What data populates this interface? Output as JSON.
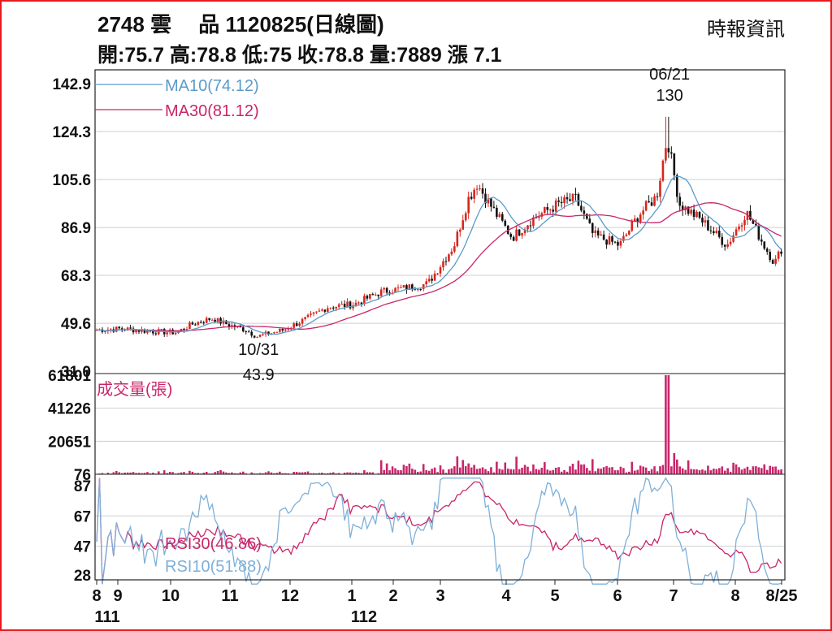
{
  "header": {
    "title": "2748 雲　 品 1120825(日線圖)",
    "ohlc": "開:75.7 高:78.8 低:75 收:78.8 量:7889 漲 7.1",
    "source": "時報資訊"
  },
  "chart_data": [
    {
      "type": "candlestick",
      "title": "2748 雲 品 1120825(日線圖)",
      "y_ticks": [
        "142.9",
        "124.3",
        "105.6",
        "86.9",
        "68.3",
        "49.6",
        "31.0"
      ],
      "ylim": [
        31.0,
        142.9
      ],
      "x_ticks": [
        "8",
        "9",
        "10",
        "11",
        "12",
        "1",
        "2",
        "3",
        "4",
        "5",
        "6",
        "7",
        "8",
        "8/25"
      ],
      "x_year_labels": [
        "111",
        "112"
      ],
      "legend": [
        {
          "name": "MA10(74.12)",
          "color": "#5b9bc8"
        },
        {
          "name": "MA30(81.12)",
          "color": "#c8266a"
        }
      ],
      "annotations": [
        {
          "text": "06/21",
          "value_text": "130",
          "date": "06/21",
          "value": 130
        },
        {
          "text": "10/31",
          "value_text": "43.9",
          "date": "10/31",
          "value": 43.9
        }
      ],
      "close_path": [
        [
          "8/1",
          47.0
        ],
        [
          "8/15",
          47.5
        ],
        [
          "9/1",
          46.5
        ],
        [
          "9/15",
          46.0
        ],
        [
          "9/25",
          49.5
        ],
        [
          "10/5",
          51.5
        ],
        [
          "10/15",
          49.0
        ],
        [
          "10/25",
          47.0
        ],
        [
          "10/31",
          44.5
        ],
        [
          "11/15",
          47.0
        ],
        [
          "11/30",
          52.0
        ],
        [
          "12/10",
          56.0
        ],
        [
          "12/25",
          57.0
        ],
        [
          "1/10",
          62.0
        ],
        [
          "1/20",
          63.0
        ],
        [
          "2/5",
          65.0
        ],
        [
          "2/20",
          80.0
        ],
        [
          "2/28",
          98.0
        ],
        [
          "3/5",
          104.0
        ],
        [
          "3/15",
          93.0
        ],
        [
          "3/25",
          83.0
        ],
        [
          "4/5",
          90.0
        ],
        [
          "4/20",
          96.0
        ],
        [
          "4/30",
          98.0
        ],
        [
          "5/10",
          84.0
        ],
        [
          "5/25",
          80.0
        ],
        [
          "6/5",
          92.0
        ],
        [
          "6/15",
          99.0
        ],
        [
          "6/21",
          122.0
        ],
        [
          "6/28",
          96.0
        ],
        [
          "7/10",
          90.0
        ],
        [
          "7/25",
          80.0
        ],
        [
          "8/5",
          93.0
        ],
        [
          "8/15",
          80.0
        ],
        [
          "8/21",
          73.0
        ],
        [
          "8/25",
          78.8
        ]
      ]
    },
    {
      "type": "bar",
      "title": "成交量(張)",
      "y_ticks": [
        "61801",
        "41226",
        "20651",
        "76"
      ],
      "ylim": [
        76,
        61801
      ],
      "highlight": {
        "date": "06/21",
        "value": 61801
      },
      "color": "#c8266a"
    },
    {
      "type": "line",
      "y_ticks": [
        "87",
        "67",
        "47",
        "28"
      ],
      "ylim": [
        28,
        87
      ],
      "series": [
        {
          "name": "RSI30(46.86)",
          "color": "#c8266a",
          "last": 46.86
        },
        {
          "name": "RSI10(51.88)",
          "color": "#7fb0d8",
          "last": 51.88
        }
      ]
    }
  ]
}
